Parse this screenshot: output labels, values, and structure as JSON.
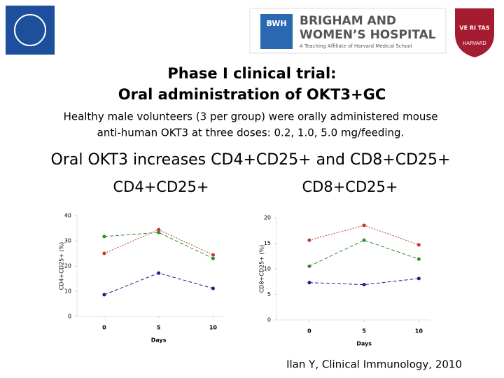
{
  "logos": {
    "bwh_abbrev": "BWH",
    "bwh_line1": "BRIGHAM AND",
    "bwh_line2": "WOMEN’S HOSPITAL",
    "bwh_line3": "A Teaching Affiliate of Harvard Medical School",
    "harvard_motto": "VE RI TAS",
    "harvard_name": "HARVARD"
  },
  "title_line1": "Phase I clinical trial:",
  "title_line2": "Oral administration of OKT3+GC",
  "subtitle_line1": "Healthy male volunteers (3 per group) were orally administered mouse",
  "subtitle_line2": "anti-human OKT3 at three doses: 0.2, 1.0, 5.0 mg/feeding.",
  "heading": "Oral OKT3 increases CD4+CD25+ and CD8+CD25+",
  "citation": "Ilan Y, Clinical Immunology, 2010",
  "chart_data": [
    {
      "type": "line",
      "title": "CD4+CD25+",
      "xlabel": "Days",
      "ylabel": "CD4+CD25+ (%)",
      "x": [
        0,
        5,
        10
      ],
      "xticks": [
        0,
        5,
        10
      ],
      "xlim": [
        -2.5,
        11
      ],
      "ylim": [
        0,
        40
      ],
      "yticks": [
        0,
        10,
        20,
        30,
        40
      ],
      "series": [
        {
          "color": "#c8302a",
          "values": [
            25,
            34.4,
            24.4
          ]
        },
        {
          "color": "#2e8b2e",
          "values": [
            31.7,
            33.3,
            23
          ]
        },
        {
          "color": "#1c1c8a",
          "values": [
            8.6,
            17.2,
            11.1
          ]
        }
      ]
    },
    {
      "type": "line",
      "title": "CD8+CD25+",
      "xlabel": "Days",
      "ylabel": "CD8+CD25+ (%)",
      "x": [
        0,
        5,
        10
      ],
      "xticks": [
        0,
        5,
        10
      ],
      "xlim": [
        -3,
        11
      ],
      "ylim": [
        0,
        20
      ],
      "yticks": [
        0,
        5,
        10,
        15,
        20
      ],
      "series": [
        {
          "color": "#c8302a",
          "values": [
            15.6,
            18.5,
            14.7
          ]
        },
        {
          "color": "#2e8b2e",
          "values": [
            10.5,
            15.6,
            11.9
          ]
        },
        {
          "color": "#1c1c8a",
          "values": [
            7.3,
            6.9,
            8.1
          ]
        }
      ]
    }
  ]
}
